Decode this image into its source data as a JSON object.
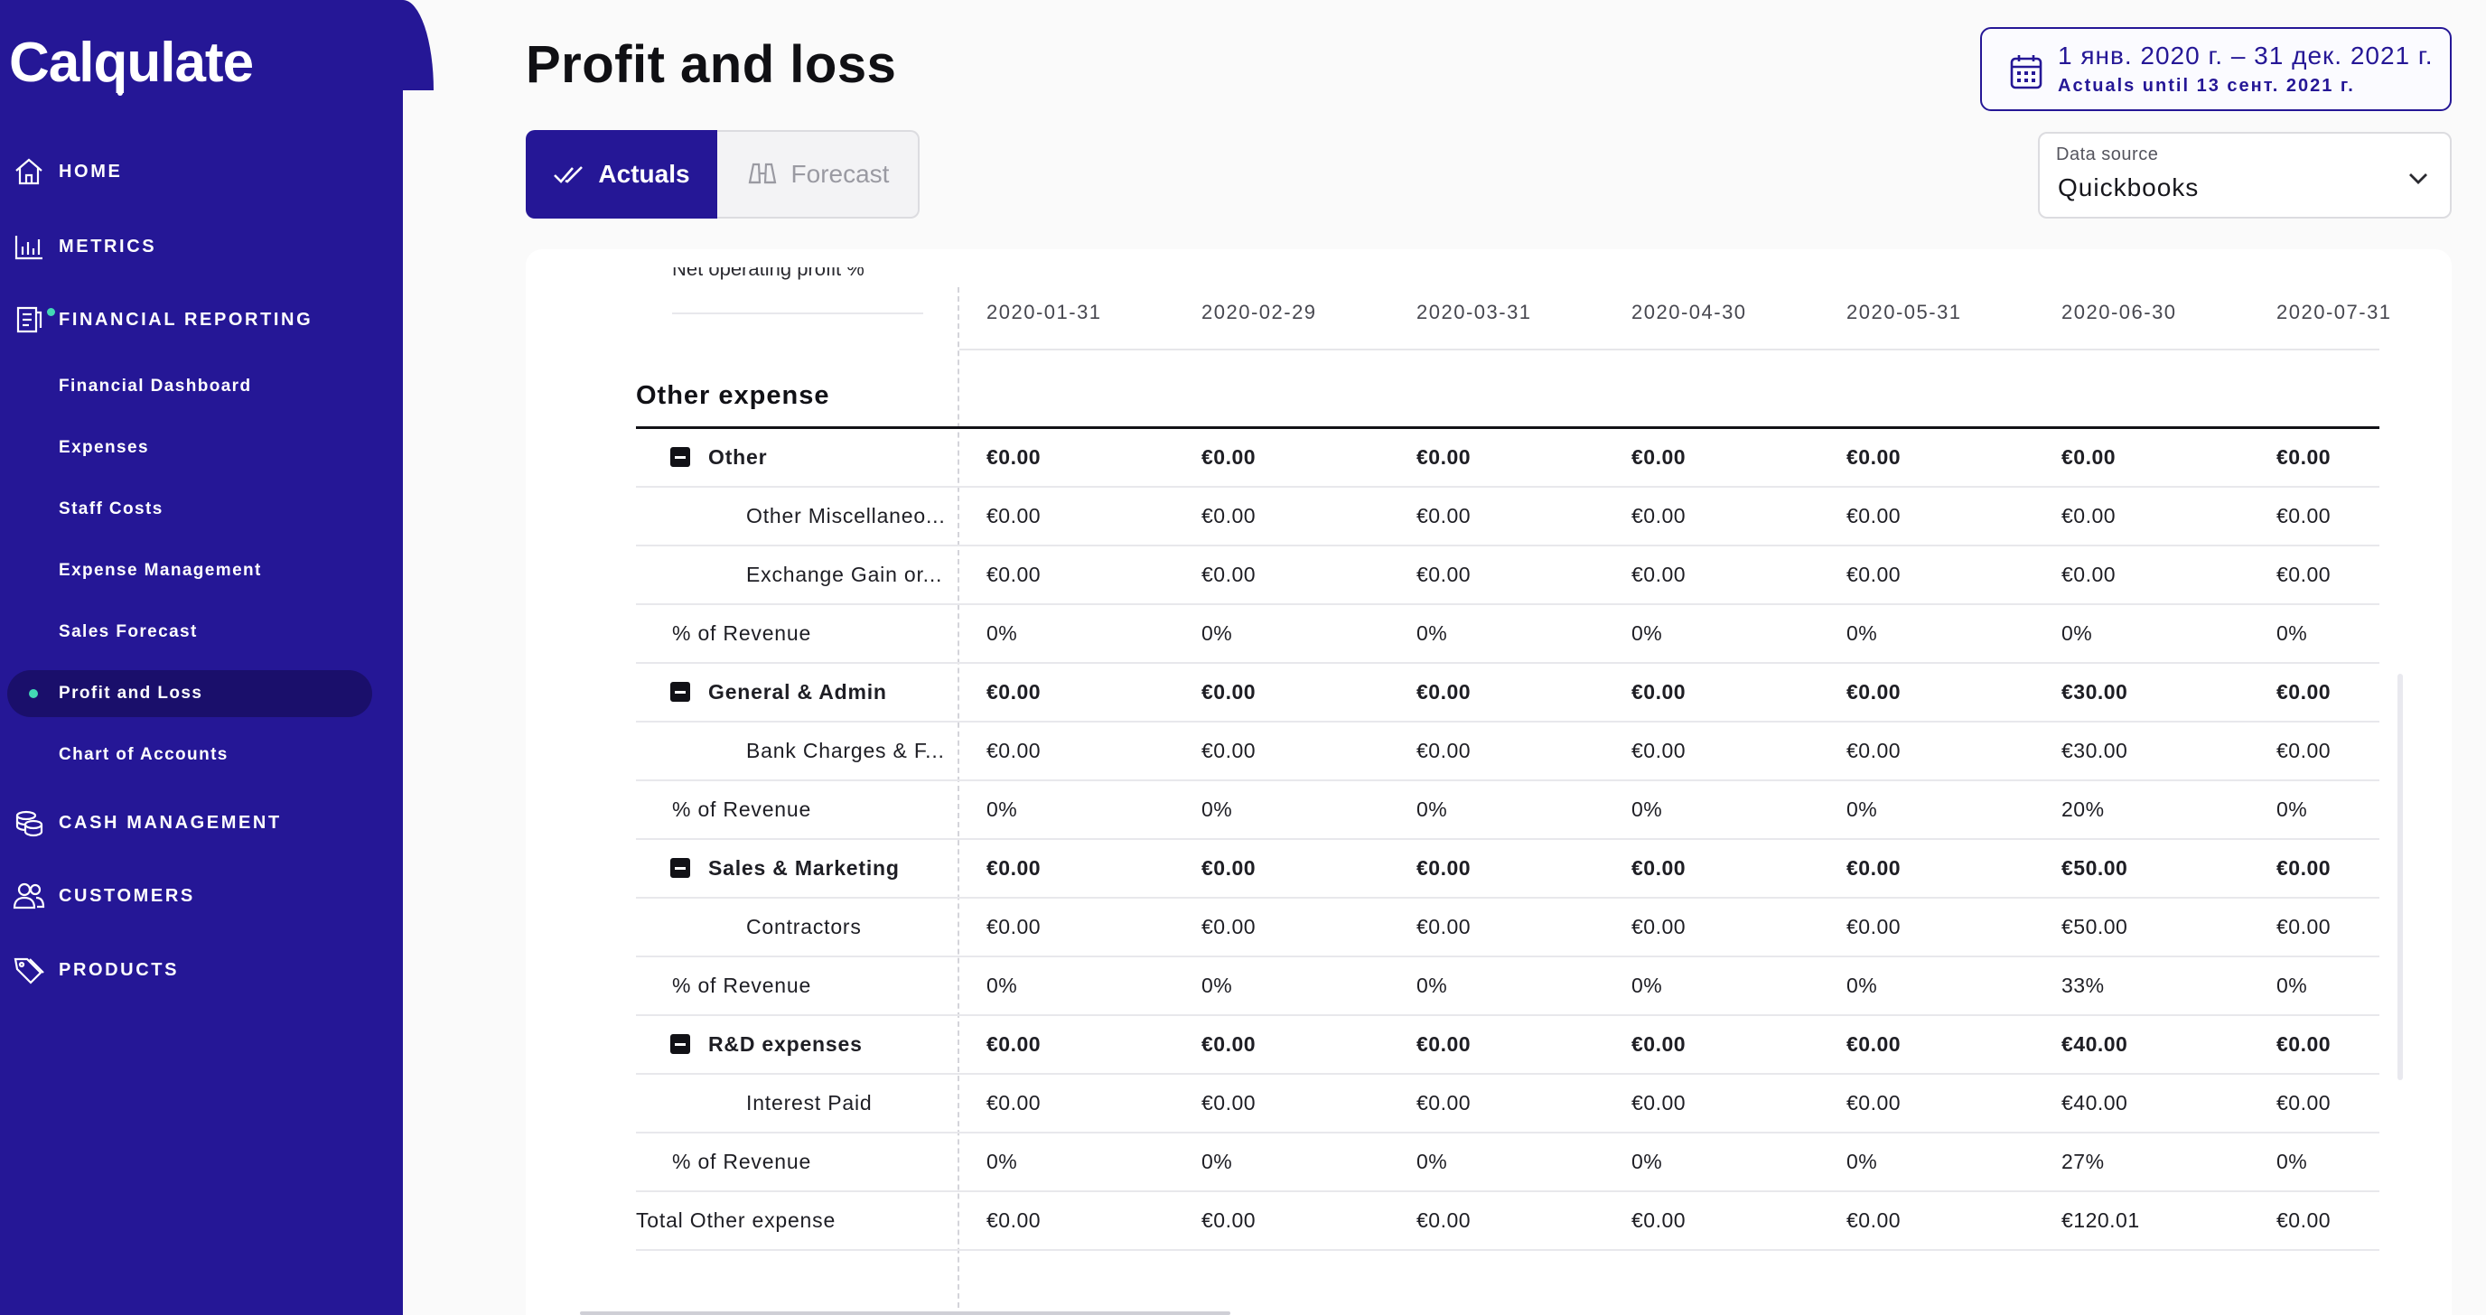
{
  "app": {
    "name": "Calqulate"
  },
  "sidebar": {
    "nav": [
      {
        "key": "home",
        "label": "HOME",
        "icon": "home-icon"
      },
      {
        "key": "metrics",
        "label": "METRICS",
        "icon": "bar-chart-icon"
      },
      {
        "key": "financial_reporting",
        "label": "FINANCIAL REPORTING",
        "icon": "report-icon"
      },
      {
        "key": "cash_management",
        "label": "CASH MANAGEMENT",
        "icon": "coins-icon"
      },
      {
        "key": "customers",
        "label": "CUSTOMERS",
        "icon": "users-icon"
      },
      {
        "key": "products",
        "label": "PRODUCTS",
        "icon": "tags-icon"
      }
    ],
    "financial_sub": [
      {
        "label": "Financial Dashboard"
      },
      {
        "label": "Expenses"
      },
      {
        "label": "Staff Costs"
      },
      {
        "label": "Expense Management"
      },
      {
        "label": "Sales Forecast"
      },
      {
        "label": "Profit and Loss",
        "active": true
      },
      {
        "label": "Chart of Accounts"
      }
    ]
  },
  "header": {
    "title": "Profit and loss",
    "toggle": {
      "actuals": "Actuals",
      "forecast": "Forecast",
      "selected": "actuals"
    },
    "date_range": {
      "main": "1 янв. 2020 г. – 31 дек. 2021 г.",
      "sub": "Actuals until 13 сент. 2021 г."
    },
    "data_source": {
      "label": "Data source",
      "value": "Quickbooks"
    }
  },
  "table": {
    "clipped_header_label": "Net operating profit %",
    "dates": [
      "2020-01-31",
      "2020-02-29",
      "2020-03-31",
      "2020-04-30",
      "2020-05-31",
      "2020-06-30",
      "2020-07-31"
    ],
    "section_title": "Other expense",
    "rows": [
      {
        "type": "group",
        "label": "Other",
        "values": [
          "€0.00",
          "€0.00",
          "€0.00",
          "€0.00",
          "€0.00",
          "€0.00",
          "€0.00"
        ]
      },
      {
        "type": "child",
        "label": "Other Miscellaneo...",
        "values": [
          "€0.00",
          "€0.00",
          "€0.00",
          "€0.00",
          "€0.00",
          "€0.00",
          "€0.00"
        ]
      },
      {
        "type": "child",
        "label": "Exchange Gain or...",
        "values": [
          "€0.00",
          "€0.00",
          "€0.00",
          "€0.00",
          "€0.00",
          "€0.00",
          "€0.00"
        ]
      },
      {
        "type": "pct",
        "label": "% of Revenue",
        "values": [
          "0%",
          "0%",
          "0%",
          "0%",
          "0%",
          "0%",
          "0%"
        ]
      },
      {
        "type": "group",
        "label": "General & Admin",
        "values": [
          "€0.00",
          "€0.00",
          "€0.00",
          "€0.00",
          "€0.00",
          "€30.00",
          "€0.00"
        ]
      },
      {
        "type": "child",
        "label": "Bank Charges & F...",
        "values": [
          "€0.00",
          "€0.00",
          "€0.00",
          "€0.00",
          "€0.00",
          "€30.00",
          "€0.00"
        ]
      },
      {
        "type": "pct",
        "label": "% of Revenue",
        "values": [
          "0%",
          "0%",
          "0%",
          "0%",
          "0%",
          "20%",
          "0%"
        ]
      },
      {
        "type": "group",
        "label": "Sales & Marketing",
        "values": [
          "€0.00",
          "€0.00",
          "€0.00",
          "€0.00",
          "€0.00",
          "€50.00",
          "€0.00"
        ]
      },
      {
        "type": "child",
        "label": "Contractors",
        "values": [
          "€0.00",
          "€0.00",
          "€0.00",
          "€0.00",
          "€0.00",
          "€50.00",
          "€0.00"
        ]
      },
      {
        "type": "pct",
        "label": "% of Revenue",
        "values": [
          "0%",
          "0%",
          "0%",
          "0%",
          "0%",
          "33%",
          "0%"
        ]
      },
      {
        "type": "group",
        "label": "R&D expenses",
        "values": [
          "€0.00",
          "€0.00",
          "€0.00",
          "€0.00",
          "€0.00",
          "€40.00",
          "€0.00"
        ]
      },
      {
        "type": "child",
        "label": "Interest Paid",
        "values": [
          "€0.00",
          "€0.00",
          "€0.00",
          "€0.00",
          "€0.00",
          "€40.00",
          "€0.00"
        ]
      },
      {
        "type": "pct",
        "label": "% of Revenue",
        "values": [
          "0%",
          "0%",
          "0%",
          "0%",
          "0%",
          "27%",
          "0%"
        ]
      },
      {
        "type": "total",
        "label": "Total Other expense",
        "values": [
          "€0.00",
          "€0.00",
          "€0.00",
          "€0.00",
          "€0.00",
          "€120.01",
          "€0.00"
        ]
      }
    ]
  }
}
